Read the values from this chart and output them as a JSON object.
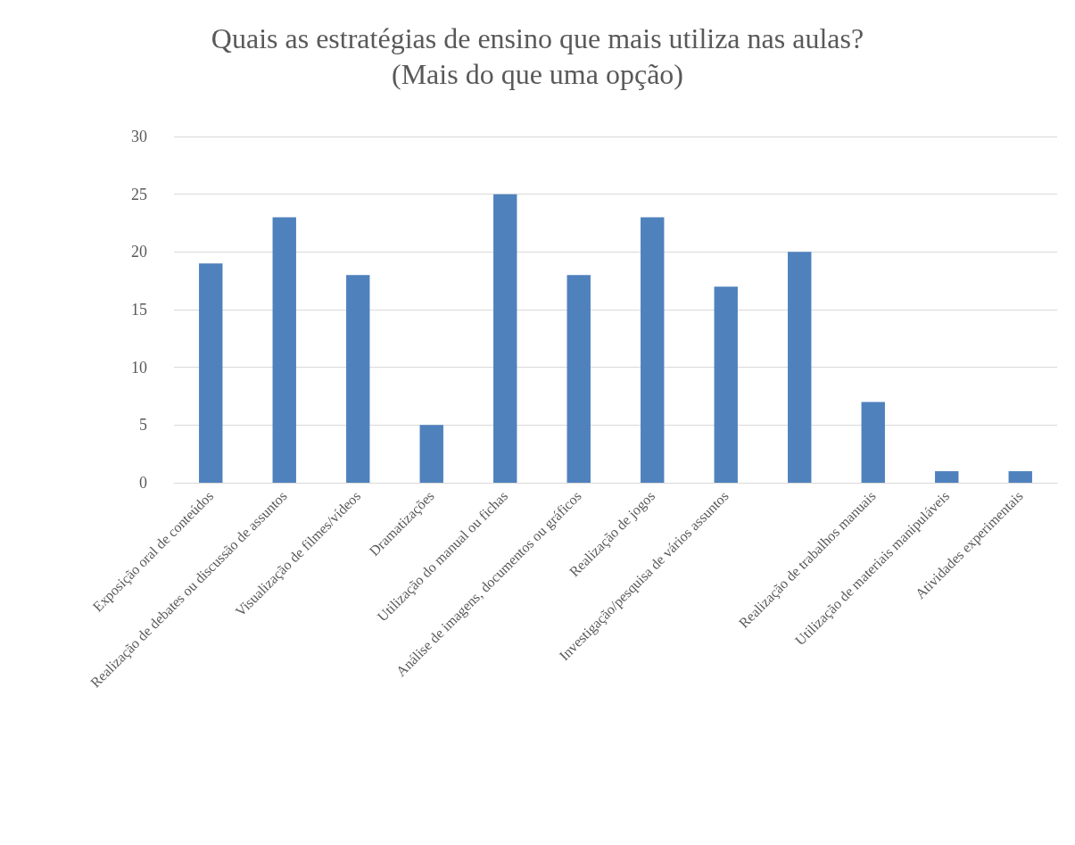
{
  "chart_data": {
    "type": "bar",
    "title": "Quais as estratégias de ensino que mais utiliza nas aulas?\n(Mais do que uma opção)",
    "categories": [
      "Exposição oral de conteúdos",
      "Realização de debates ou discussão de assuntos",
      "Visualização de filmes/vídeos",
      "Dramatizações",
      "Utilização do manual ou fichas",
      "Análise de imagens, documentos ou gráficos",
      "Realização de jogos",
      "Investigação/pesquisa de vários assuntos",
      null,
      "Realização de trabalhos manuais",
      "Utilização de materiais manipuláveis",
      "Atividades experimentais"
    ],
    "values": [
      19,
      23,
      18,
      5,
      25,
      18,
      23,
      17,
      20,
      7,
      1,
      1
    ],
    "color": "#4f81bd",
    "ylim": [
      0,
      30
    ],
    "yticks": [
      0,
      5,
      10,
      15,
      20,
      25,
      30
    ],
    "grid": "y"
  }
}
